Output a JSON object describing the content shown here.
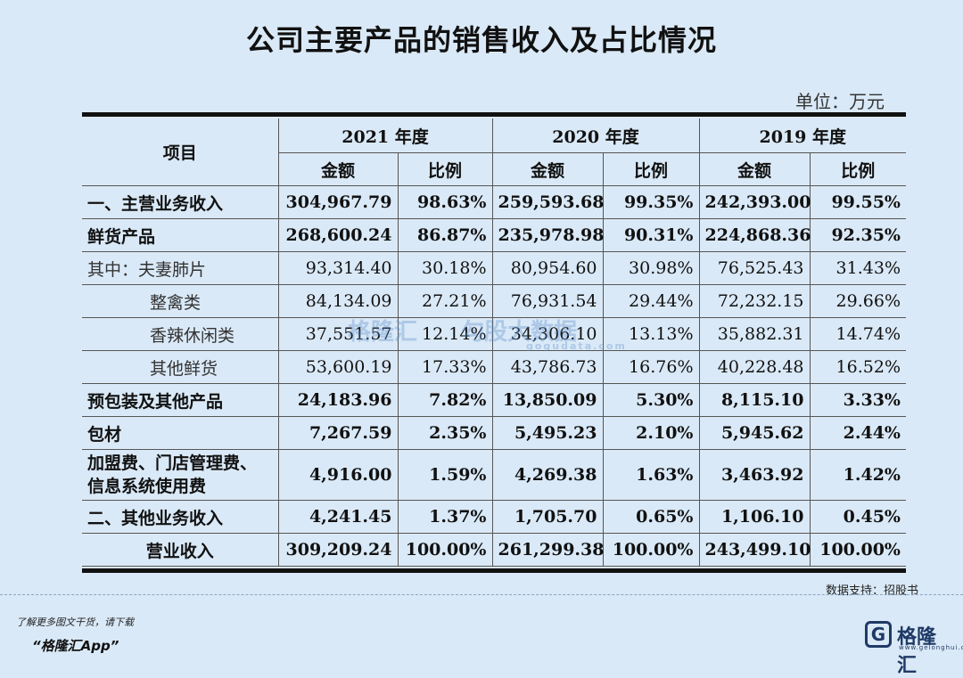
{
  "title": "公司主要产品的销售收入及占比情况",
  "unit": "单位：万元",
  "table": {
    "item_header": "项目",
    "years": [
      "2021 年度",
      "2020 年度",
      "2019 年度"
    ],
    "sub_headers": [
      "金额",
      "比例"
    ],
    "rows": [
      {
        "label": "一、主营业务收入",
        "style": "bold",
        "cells": [
          "304,967.79",
          "98.63%",
          "259,593.68",
          "99.35%",
          "242,393.00",
          "99.55%"
        ]
      },
      {
        "label": "鲜货产品",
        "style": "bold",
        "cells": [
          "268,600.24",
          "86.87%",
          "235,978.98",
          "90.31%",
          "224,868.36",
          "92.35%"
        ]
      },
      {
        "label": "其中：夫妻肺片",
        "style": "sub",
        "cells": [
          "93,314.40",
          "30.18%",
          "80,954.60",
          "30.98%",
          "76,525.43",
          "31.43%"
        ]
      },
      {
        "label": "整禽类",
        "style": "sub-indent",
        "cells": [
          "84,134.09",
          "27.21%",
          "76,931.54",
          "29.44%",
          "72,232.15",
          "29.66%"
        ]
      },
      {
        "label": "香辣休闲类",
        "style": "sub-indent",
        "cells": [
          "37,551.57",
          "12.14%",
          "34,306.10",
          "13.13%",
          "35,882.31",
          "14.74%"
        ]
      },
      {
        "label": "其他鲜货",
        "style": "sub-indent",
        "cells": [
          "53,600.19",
          "17.33%",
          "43,786.73",
          "16.76%",
          "40,228.48",
          "16.52%"
        ]
      },
      {
        "label": "预包装及其他产品",
        "style": "bold",
        "cells": [
          "24,183.96",
          "7.82%",
          "13,850.09",
          "5.30%",
          "8,115.10",
          "3.33%"
        ]
      },
      {
        "label": "包材",
        "style": "bold",
        "cells": [
          "7,267.59",
          "2.35%",
          "5,495.23",
          "2.10%",
          "5,945.62",
          "2.44%"
        ]
      },
      {
        "label": "加盟费、门店管理费、信息系统使用费",
        "style": "multi",
        "cells": [
          "4,916.00",
          "1.59%",
          "4,269.38",
          "1.63%",
          "3,463.92",
          "1.42%"
        ]
      },
      {
        "label": "二、其他业务收入",
        "style": "bold",
        "cells": [
          "4,241.45",
          "1.37%",
          "1,705.70",
          "0.65%",
          "1,106.10",
          "0.45%"
        ]
      },
      {
        "label": "营业收入",
        "style": "center",
        "cells": [
          "309,209.24",
          "100.00%",
          "261,299.38",
          "100.00%",
          "243,499.10",
          "100.00%"
        ]
      }
    ]
  },
  "watermark": {
    "brand": "格隆汇",
    "brand2": "勾股大数据",
    "site": "gogudata.com"
  },
  "source": "数据支持：招股书",
  "promo": {
    "line1": "了解更多图文干货，请下载",
    "line2": "“格隆汇App”"
  },
  "logo": {
    "mark": "G",
    "name": "格隆汇",
    "url": "www.gelonghui.com"
  }
}
